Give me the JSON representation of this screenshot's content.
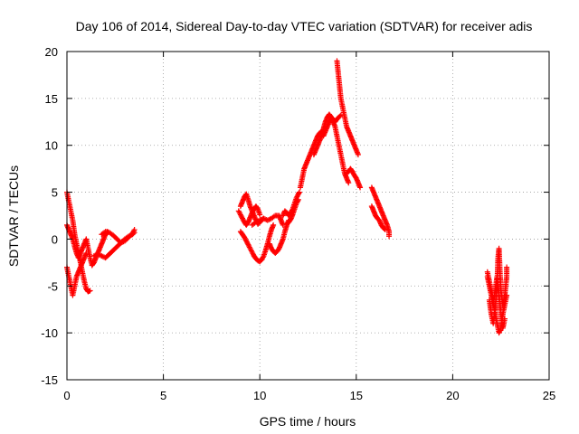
{
  "chart_data": {
    "type": "scatter",
    "title": "Day 106 of 2014, Sidereal Day-to-day VTEC variation (SDTVAR) for receiver adis",
    "xlabel": "GPS time / hours",
    "ylabel": "SDTVAR / TECUs",
    "xlim": [
      0,
      25
    ],
    "ylim": [
      -15,
      20
    ],
    "xticks": [
      0,
      5,
      10,
      15,
      20,
      25
    ],
    "yticks": [
      -15,
      -10,
      -5,
      0,
      5,
      10,
      15,
      20
    ],
    "grid": true,
    "marker": "+",
    "marker_color": "#ff0000",
    "series": [
      {
        "name": "SDTVAR",
        "tracks": [
          [
            [
              0.0,
              5.0
            ],
            [
              0.1,
              4.0
            ],
            [
              0.2,
              3.0
            ],
            [
              0.3,
              2.0
            ],
            [
              0.4,
              0.5
            ],
            [
              0.5,
              -0.5
            ],
            [
              0.6,
              -1.5
            ],
            [
              0.7,
              -2.5
            ],
            [
              0.8,
              -3.5
            ],
            [
              0.9,
              -4.5
            ],
            [
              1.0,
              -5.3
            ],
            [
              1.1,
              -5.6
            ],
            [
              1.2,
              -5.5
            ]
          ],
          [
            [
              0.0,
              1.5
            ],
            [
              0.1,
              1.0
            ],
            [
              0.2,
              0.5
            ],
            [
              0.3,
              0.0
            ],
            [
              0.4,
              -0.8
            ],
            [
              0.5,
              -1.5
            ],
            [
              0.6,
              -2.0
            ],
            [
              0.7,
              -1.5
            ],
            [
              0.8,
              -1.0
            ],
            [
              0.9,
              -0.5
            ],
            [
              1.0,
              0.0
            ],
            [
              1.1,
              -1.0
            ],
            [
              1.2,
              -2.0
            ],
            [
              1.3,
              -2.8
            ],
            [
              1.4,
              -2.5
            ],
            [
              1.5,
              -2.0
            ],
            [
              1.6,
              -1.5
            ],
            [
              1.7,
              -1.0
            ],
            [
              1.8,
              -0.5
            ],
            [
              1.9,
              0.0
            ],
            [
              2.0,
              0.5
            ],
            [
              2.1,
              0.8
            ]
          ],
          [
            [
              0.0,
              -3.0
            ],
            [
              0.1,
              -4.0
            ],
            [
              0.2,
              -5.0
            ],
            [
              0.3,
              -6.0
            ],
            [
              0.4,
              -5.0
            ],
            [
              0.5,
              -4.0
            ],
            [
              0.6,
              -3.5
            ],
            [
              0.7,
              -3.0
            ],
            [
              0.8,
              -2.5
            ],
            [
              0.9,
              -2.0
            ],
            [
              1.0,
              -1.5
            ]
          ],
          [
            [
              1.4,
              -1.8
            ],
            [
              1.6,
              -1.6
            ],
            [
              1.8,
              -1.8
            ],
            [
              2.0,
              -2.0
            ],
            [
              2.2,
              -1.6
            ],
            [
              2.4,
              -1.2
            ],
            [
              2.6,
              -0.8
            ],
            [
              2.8,
              -0.4
            ],
            [
              3.0,
              0.0
            ],
            [
              3.2,
              0.3
            ],
            [
              3.4,
              0.5
            ],
            [
              3.5,
              0.7
            ]
          ],
          [
            [
              1.8,
              0.5
            ],
            [
              2.0,
              0.8
            ],
            [
              2.2,
              0.7
            ],
            [
              2.4,
              0.4
            ],
            [
              2.6,
              0.0
            ],
            [
              2.8,
              -0.4
            ],
            [
              3.0,
              -0.2
            ],
            [
              3.2,
              0.2
            ],
            [
              3.4,
              0.6
            ],
            [
              3.5,
              1.0
            ]
          ],
          [
            [
              9.0,
              3.5
            ],
            [
              9.1,
              4.0
            ],
            [
              9.2,
              4.5
            ],
            [
              9.3,
              4.8
            ],
            [
              9.4,
              4.2
            ],
            [
              9.5,
              3.5
            ],
            [
              9.6,
              3.0
            ],
            [
              9.7,
              2.5
            ],
            [
              9.8,
              2.0
            ],
            [
              9.9,
              1.6
            ],
            [
              10.0,
              1.8
            ],
            [
              10.1,
              2.0
            ],
            [
              10.2,
              2.2
            ]
          ],
          [
            [
              8.9,
              3.0
            ],
            [
              9.0,
              2.6
            ],
            [
              9.1,
              2.2
            ],
            [
              9.2,
              1.8
            ],
            [
              9.3,
              1.5
            ],
            [
              9.4,
              1.8
            ],
            [
              9.5,
              2.3
            ],
            [
              9.6,
              2.8
            ],
            [
              9.7,
              3.2
            ],
            [
              9.8,
              3.5
            ],
            [
              9.9,
              3.2
            ],
            [
              10.0,
              2.6
            ]
          ],
          [
            [
              9.0,
              0.8
            ],
            [
              9.1,
              0.5
            ],
            [
              9.2,
              0.2
            ],
            [
              9.3,
              -0.2
            ],
            [
              9.4,
              -0.6
            ],
            [
              9.5,
              -1.0
            ],
            [
              9.6,
              -1.4
            ],
            [
              9.7,
              -1.8
            ],
            [
              9.8,
              -2.1
            ],
            [
              9.9,
              -2.3
            ],
            [
              10.0,
              -2.4
            ],
            [
              10.1,
              -2.2
            ],
            [
              10.2,
              -1.8
            ],
            [
              10.3,
              -1.2
            ],
            [
              10.4,
              -0.5
            ],
            [
              10.5,
              0.3
            ],
            [
              10.6,
              1.0
            ],
            [
              10.7,
              1.5
            ]
          ],
          [
            [
              9.6,
              1.5
            ],
            [
              9.8,
              1.8
            ],
            [
              10.0,
              2.0
            ],
            [
              10.2,
              2.2
            ],
            [
              10.4,
              2.0
            ],
            [
              10.6,
              2.2
            ],
            [
              10.8,
              2.5
            ],
            [
              11.0,
              2.5
            ],
            [
              11.1,
              2.0
            ],
            [
              11.2,
              1.5
            ]
          ],
          [
            [
              10.5,
              -0.5
            ],
            [
              10.6,
              -1.0
            ],
            [
              10.7,
              -1.3
            ],
            [
              10.8,
              -1.5
            ],
            [
              10.9,
              -1.3
            ],
            [
              11.0,
              -1.0
            ],
            [
              11.1,
              -0.5
            ],
            [
              11.2,
              0.0
            ],
            [
              11.3,
              0.8
            ],
            [
              11.4,
              1.5
            ],
            [
              11.5,
              2.0
            ]
          ],
          [
            [
              11.2,
              2.5
            ],
            [
              11.3,
              3.0
            ],
            [
              11.4,
              2.8
            ],
            [
              11.5,
              2.5
            ],
            [
              11.6,
              2.8
            ],
            [
              11.7,
              3.2
            ],
            [
              11.8,
              3.8
            ],
            [
              11.9,
              4.4
            ],
            [
              12.0,
              4.8
            ],
            [
              12.05,
              5.0
            ]
          ],
          [
            [
              11.4,
              1.6
            ],
            [
              11.5,
              1.8
            ],
            [
              11.6,
              2.1
            ],
            [
              11.7,
              2.6
            ],
            [
              11.8,
              3.2
            ],
            [
              11.9,
              3.8
            ],
            [
              12.0,
              4.2
            ]
          ],
          [
            [
              12.1,
              5.5
            ],
            [
              12.2,
              6.5
            ],
            [
              12.3,
              7.5
            ],
            [
              12.4,
              8.0
            ],
            [
              12.5,
              8.5
            ],
            [
              12.6,
              9.0
            ],
            [
              12.7,
              9.5
            ],
            [
              12.8,
              10.0
            ],
            [
              12.9,
              10.5
            ],
            [
              13.0,
              11.0
            ],
            [
              13.1,
              11.3
            ],
            [
              13.2,
              11.5
            ],
            [
              13.3,
              11.0
            ],
            [
              13.4,
              11.5
            ],
            [
              13.5,
              12.0
            ],
            [
              13.6,
              12.5
            ],
            [
              13.7,
              12.8
            ],
            [
              13.8,
              12.5
            ],
            [
              13.9,
              12.0
            ],
            [
              14.0,
              11.0
            ],
            [
              14.1,
              10.0
            ],
            [
              14.2,
              9.0
            ],
            [
              14.3,
              8.0
            ],
            [
              14.4,
              7.0
            ],
            [
              14.5,
              6.5
            ],
            [
              14.6,
              6.0
            ]
          ],
          [
            [
              12.8,
              9.0
            ],
            [
              12.9,
              9.5
            ],
            [
              13.0,
              10.0
            ],
            [
              13.1,
              10.5
            ],
            [
              13.2,
              11.0
            ],
            [
              13.3,
              11.8
            ],
            [
              13.4,
              12.5
            ],
            [
              13.5,
              13.0
            ],
            [
              13.6,
              13.3
            ],
            [
              13.7,
              13.0
            ],
            [
              13.8,
              12.8
            ],
            [
              13.9,
              12.5
            ],
            [
              14.0,
              12.8
            ],
            [
              14.1,
              13.0
            ],
            [
              14.2,
              13.2
            ]
          ],
          [
            [
              14.0,
              19.0
            ],
            [
              14.05,
              18.0
            ],
            [
              14.1,
              17.0
            ],
            [
              14.15,
              16.0
            ],
            [
              14.2,
              15.0
            ],
            [
              14.25,
              14.5
            ],
            [
              14.3,
              14.0
            ],
            [
              14.4,
              13.0
            ],
            [
              14.5,
              12.0
            ],
            [
              14.6,
              11.5
            ],
            [
              14.7,
              11.0
            ],
            [
              14.8,
              10.5
            ],
            [
              14.9,
              10.0
            ],
            [
              15.0,
              9.5
            ],
            [
              15.1,
              9.0
            ]
          ],
          [
            [
              14.5,
              7.0
            ],
            [
              14.6,
              7.2
            ],
            [
              14.7,
              7.5
            ],
            [
              14.8,
              7.2
            ],
            [
              14.9,
              6.8
            ],
            [
              15.0,
              6.5
            ],
            [
              15.1,
              6.0
            ],
            [
              15.2,
              5.5
            ]
          ],
          [
            [
              15.8,
              5.5
            ],
            [
              15.9,
              5.0
            ],
            [
              16.0,
              4.5
            ],
            [
              16.1,
              4.0
            ],
            [
              16.2,
              3.5
            ],
            [
              16.3,
              3.0
            ],
            [
              16.4,
              2.5
            ],
            [
              16.5,
              2.0
            ],
            [
              16.6,
              1.5
            ],
            [
              16.7,
              0.8
            ],
            [
              16.7,
              0.3
            ]
          ],
          [
            [
              15.8,
              3.5
            ],
            [
              15.9,
              3.0
            ],
            [
              16.0,
              2.5
            ],
            [
              16.1,
              2.2
            ],
            [
              16.2,
              2.0
            ],
            [
              16.3,
              1.5
            ],
            [
              16.4,
              1.2
            ],
            [
              16.5,
              1.0
            ]
          ],
          [
            [
              21.8,
              -4.0
            ],
            [
              21.9,
              -5.0
            ],
            [
              22.0,
              -6.0
            ],
            [
              22.1,
              -7.0
            ],
            [
              22.2,
              -5.5
            ],
            [
              22.3,
              -4.0
            ],
            [
              22.4,
              -6.0
            ],
            [
              22.5,
              -8.0
            ],
            [
              22.6,
              -9.5
            ],
            [
              22.7,
              -8.5
            ]
          ],
          [
            [
              21.9,
              -6.5
            ],
            [
              22.0,
              -8.0
            ],
            [
              22.1,
              -9.0
            ],
            [
              22.2,
              -7.5
            ],
            [
              22.3,
              -5.0
            ],
            [
              22.35,
              -2.0
            ],
            [
              22.4,
              -1.0
            ],
            [
              22.45,
              -3.5
            ],
            [
              22.5,
              -5.5
            ],
            [
              22.6,
              -7.0
            ],
            [
              22.7,
              -6.0
            ],
            [
              22.8,
              -4.0
            ],
            [
              22.8,
              -3.0
            ]
          ],
          [
            [
              21.8,
              -3.5
            ],
            [
              21.9,
              -4.5
            ],
            [
              22.0,
              -5.5
            ],
            [
              22.1,
              -6.5
            ],
            [
              22.2,
              -8.0
            ],
            [
              22.3,
              -9.0
            ],
            [
              22.4,
              -10.0
            ],
            [
              22.5,
              -9.5
            ],
            [
              22.6,
              -8.0
            ],
            [
              22.7,
              -7.0
            ],
            [
              22.8,
              -6.0
            ]
          ]
        ]
      }
    ]
  }
}
